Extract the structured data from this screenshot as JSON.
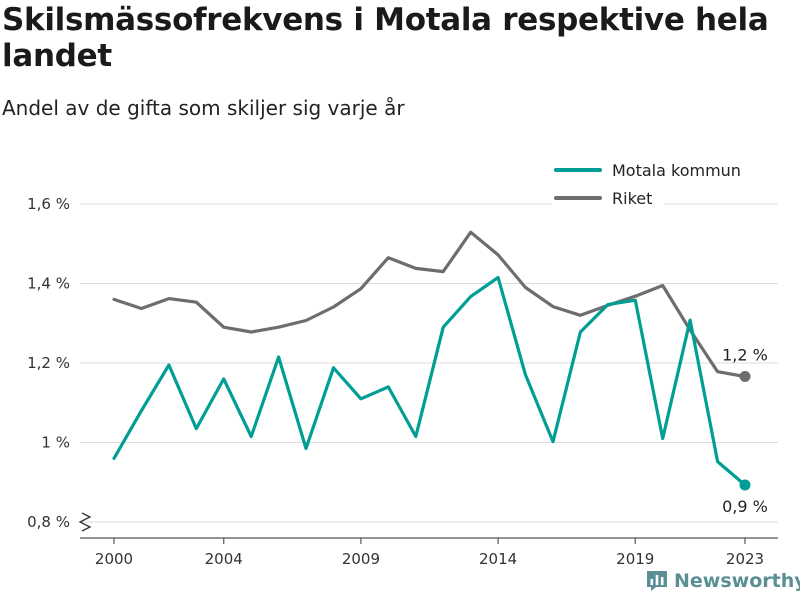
{
  "header": {
    "title": "Skilsmässofrekvens i Motala respektive hela landet",
    "subtitle": "Andel av de gifta som skiljer sig varje år"
  },
  "brand": {
    "name": "Newsworthy",
    "icon": "bar-chart-icon",
    "color": "#5a8f96"
  },
  "chart_data": {
    "type": "line",
    "x": [
      2000,
      2001,
      2002,
      2003,
      2004,
      2005,
      2006,
      2007,
      2008,
      2009,
      2010,
      2011,
      2012,
      2013,
      2014,
      2015,
      2016,
      2017,
      2018,
      2019,
      2020,
      2021,
      2022,
      2023
    ],
    "x_ticks": [
      2000,
      2004,
      2009,
      2014,
      2019,
      2023
    ],
    "x_tick_labels": [
      "2000",
      "2004",
      "2009",
      "2014",
      "2019",
      "2023"
    ],
    "ylim": [
      0.8,
      1.6
    ],
    "y_ticks": [
      0.8,
      1.0,
      1.2,
      1.4,
      1.6
    ],
    "y_tick_labels": [
      "0,8 %",
      "1 %",
      "1,2 %",
      "1,4 %",
      "1,6 %"
    ],
    "y_axis_break": true,
    "grid": "horizontal",
    "legend_position": "top-right",
    "series": [
      {
        "name": "Motala kommun",
        "color": "#009e94",
        "values": [
          0.96,
          1.08,
          1.195,
          1.035,
          1.16,
          1.015,
          1.215,
          0.985,
          1.188,
          1.11,
          1.14,
          1.015,
          1.29,
          1.367,
          1.415,
          1.17,
          1.002,
          1.278,
          1.347,
          1.358,
          1.01,
          1.308,
          0.952,
          0.893
        ],
        "end_label": "0,9 %"
      },
      {
        "name": "Riket",
        "color": "#6d6d70",
        "values": [
          1.36,
          1.337,
          1.362,
          1.353,
          1.29,
          1.278,
          1.29,
          1.307,
          1.341,
          1.387,
          1.465,
          1.438,
          1.43,
          1.529,
          1.472,
          1.39,
          1.342,
          1.32,
          1.345,
          1.368,
          1.395,
          1.283,
          1.178,
          1.166
        ],
        "end_label": "1,2 %"
      }
    ]
  }
}
